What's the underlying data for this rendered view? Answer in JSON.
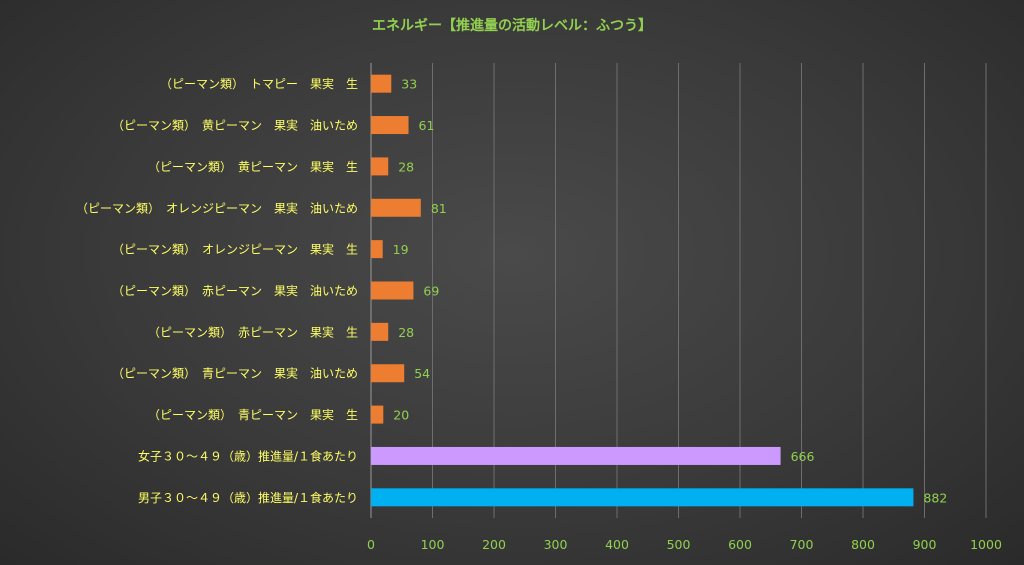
{
  "chart_data": {
    "type": "bar",
    "orientation": "horizontal",
    "title": "エネルギー【推進量の活動レベル：ふつう】",
    "categories": [
      "（ピーマン類）　トマピー　果実　生",
      "（ピーマン類）　黄ピーマン　果実　油いため",
      "（ピーマン類）　黄ピーマン　果実　生",
      "（ピーマン類）　オレンジピーマン　果実　油いため",
      "（ピーマン類）　オレンジピーマン　果実　生",
      "（ピーマン類）　赤ピーマン　果実　油いため",
      "（ピーマン類）　赤ピーマン　果実　生",
      "（ピーマン類）　青ピーマン　果実　油いため",
      "（ピーマン類）　青ピーマン　果実　生",
      "女子３０～４９（歳）推進量/１食あたり",
      "男子３０～４９（歳）推進量/１食あたり"
    ],
    "values": [
      33,
      61,
      28,
      81,
      19,
      69,
      28,
      54,
      20,
      666,
      882
    ],
    "bar_colors": [
      "#ed7d31",
      "#ed7d31",
      "#ed7d31",
      "#ed7d31",
      "#ed7d31",
      "#ed7d31",
      "#ed7d31",
      "#ed7d31",
      "#ed7d31",
      "#cc99ff",
      "#00b0f0"
    ],
    "xlim": [
      0,
      1000
    ],
    "xticks": [
      0,
      100,
      200,
      300,
      400,
      500,
      600,
      700,
      800,
      900,
      1000
    ],
    "grid": true,
    "legend": "none",
    "colors": {
      "title": "#92d050",
      "category_text": "#ffff66",
      "tick_text": "#92d050",
      "data_label": "#92d050",
      "gridline": "#6e6e6e"
    }
  }
}
